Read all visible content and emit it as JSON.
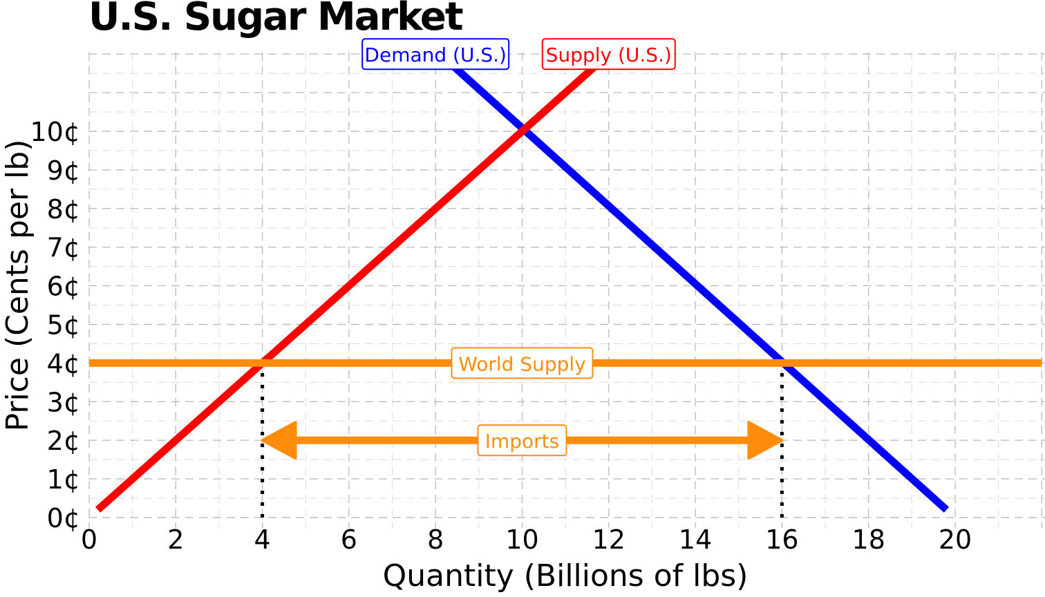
{
  "chart_data": {
    "type": "line",
    "title": "U.S. Sugar Market",
    "xlabel": "Quantity (Billions of lbs)",
    "ylabel": "Price (Cents per lb)",
    "xlim": [
      0,
      22
    ],
    "ylim": [
      0,
      12
    ],
    "x_ticks": [
      0,
      2,
      4,
      6,
      8,
      10,
      12,
      14,
      16,
      18,
      20
    ],
    "y_ticks": [
      0,
      1,
      2,
      3,
      4,
      5,
      6,
      7,
      8,
      9,
      10
    ],
    "y_tick_suffix": "¢",
    "grid": true,
    "series": [
      {
        "name": "Demand (U.S.)",
        "color": "#0000ff",
        "x": [
          8.3,
          19.8
        ],
        "y": [
          11.8,
          0.2
        ]
      },
      {
        "name": "Supply (U.S.)",
        "color": "#ff0000",
        "x": [
          0.2,
          11.8
        ],
        "y": [
          0.2,
          11.8
        ]
      },
      {
        "name": "World Supply",
        "color": "#ff8c0a",
        "x": [
          0,
          22
        ],
        "y": [
          4,
          4
        ]
      }
    ],
    "annotations": [
      {
        "text": "Imports",
        "type": "double-arrow",
        "x_from": 4,
        "x_to": 16,
        "y": 2,
        "color": "#ff8c0a"
      },
      {
        "type": "dotted-vline",
        "x": 4,
        "y_from": 0,
        "y_to": 4,
        "color": "#000000"
      },
      {
        "type": "dotted-vline",
        "x": 16,
        "y_from": 0,
        "y_to": 4,
        "color": "#000000"
      }
    ],
    "series_labels": [
      {
        "text": "Demand (U.S.)",
        "x": 8.0,
        "y": 12.0,
        "color": "#0000ff"
      },
      {
        "text": "Supply (U.S.)",
        "x": 12.0,
        "y": 12.0,
        "color": "#ff0000"
      },
      {
        "text": "World Supply",
        "x": 10.0,
        "y": 4.0,
        "color": "#ff8c0a"
      },
      {
        "text": "Imports",
        "x": 10.0,
        "y": 2.0,
        "color": "#ff8c0a"
      }
    ]
  }
}
